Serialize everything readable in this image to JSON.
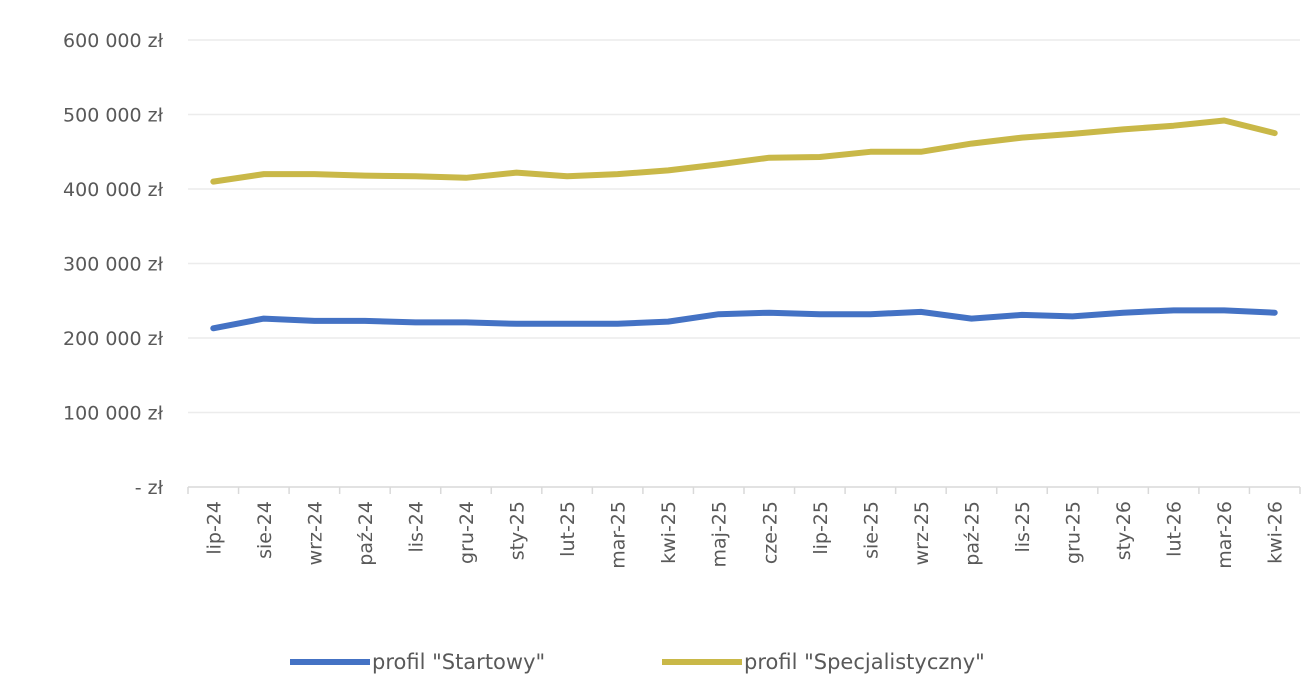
{
  "chart_data": {
    "type": "line",
    "title": "",
    "xlabel": "",
    "ylabel": "",
    "ylim": [
      0,
      600000
    ],
    "y_ticks": [
      {
        "value": 0,
        "label": "- zł"
      },
      {
        "value": 100000,
        "label": "100 000 zł"
      },
      {
        "value": 200000,
        "label": "200 000 zł"
      },
      {
        "value": 300000,
        "label": "300 000 zł"
      },
      {
        "value": 400000,
        "label": "400 000 zł"
      },
      {
        "value": 500000,
        "label": "500 000 zł"
      },
      {
        "value": 600000,
        "label": "600 000 zł"
      }
    ],
    "categories": [
      "lip-24",
      "sie-24",
      "wrz-24",
      "paź-24",
      "lis-24",
      "gru-24",
      "sty-25",
      "lut-25",
      "mar-25",
      "kwi-25",
      "maj-25",
      "cze-25",
      "lip-25",
      "sie-25",
      "wrz-25",
      "paź-25",
      "lis-25",
      "gru-25",
      "sty-26",
      "lut-26",
      "mar-26",
      "kwi-26"
    ],
    "grid": true,
    "legend_position": "bottom",
    "series": [
      {
        "name": "profil \"Startowy\"",
        "color": "#4472c4",
        "values": [
          213000,
          226000,
          223000,
          223000,
          221000,
          221000,
          219000,
          219000,
          219000,
          222000,
          232000,
          234000,
          232000,
          232000,
          235000,
          226000,
          231000,
          229000,
          234000,
          237000,
          237000,
          234000
        ]
      },
      {
        "name": "profil \"Specjalistyczny\"",
        "color": "#c9b848",
        "values": [
          410000,
          420000,
          420000,
          418000,
          417000,
          415000,
          422000,
          417000,
          420000,
          425000,
          433000,
          442000,
          443000,
          450000,
          450000,
          461000,
          469000,
          474000,
          480000,
          485000,
          492000,
          475000
        ]
      }
    ]
  }
}
